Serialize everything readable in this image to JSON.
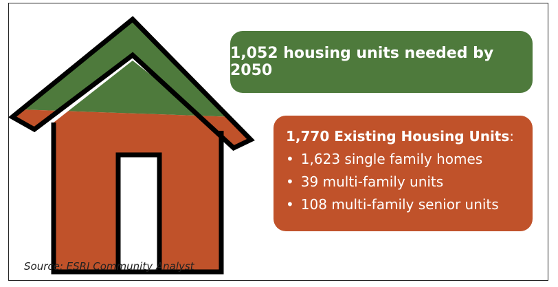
{
  "need": {
    "text": "1,052 housing units needed by 2050"
  },
  "existing": {
    "heading": "1,770 Existing Housing Units",
    "heading_suffix": ":",
    "items": [
      "1,623 single family homes",
      "39 multi-family units",
      "108 multi-family senior units"
    ]
  },
  "source": "Source: ESRI Community Analyst"
}
